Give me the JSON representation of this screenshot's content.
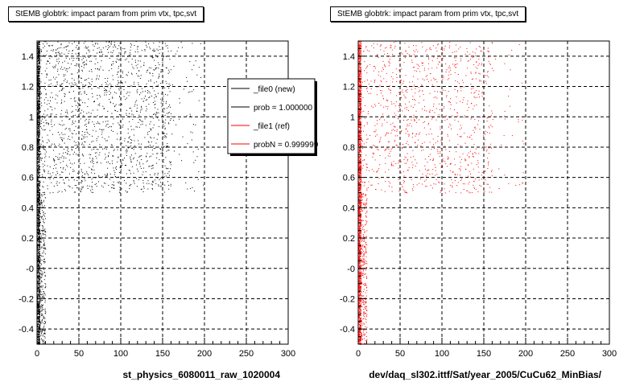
{
  "chart_data": [
    {
      "type": "scatter",
      "title": "StEMB globtrk: impact param from prim vtx, tpc,svt",
      "xlabel": "st_physics_6080011_raw_1020004",
      "ylabel": "",
      "xlim": [
        0,
        300
      ],
      "ylim": [
        -0.5,
        1.5
      ],
      "x_ticks": [
        0,
        50,
        100,
        150,
        200,
        250,
        300
      ],
      "y_ticks": [
        -0.4,
        -0.2,
        0,
        0.2,
        0.4,
        0.6,
        0.8,
        1,
        1.2,
        1.4
      ],
      "x_tick_labels": [
        "0",
        "50",
        "100",
        "150",
        "200",
        "250",
        "300"
      ],
      "y_tick_labels": [
        "-0.4",
        "-0.2",
        "-0",
        "0.2",
        "0.4",
        "0.6",
        "0.8",
        "1",
        "1.2",
        "1.4"
      ],
      "grid": true,
      "color": "#000000",
      "density_regions": [
        {
          "x": [
            0,
            3
          ],
          "y": [
            -0.5,
            1.5
          ],
          "weight": 6
        },
        {
          "x": [
            3,
            160
          ],
          "y": [
            0.5,
            1.5
          ],
          "weight": 5
        },
        {
          "x": [
            3,
            200
          ],
          "y": [
            0.5,
            1.5
          ],
          "weight": 1
        },
        {
          "x": [
            3,
            10
          ],
          "y": [
            -0.5,
            0.5
          ],
          "weight": 1
        }
      ],
      "legend": {
        "position": "top-right",
        "entries": [
          {
            "label": "_file0 (new)",
            "color": "#000000"
          },
          {
            "label": "prob = 1.000000",
            "color": "#000000"
          },
          {
            "label": "_file1 (ref)",
            "color": "#ff0000"
          },
          {
            "label": "probN = 0.999999",
            "color": "#ff0000"
          }
        ]
      }
    },
    {
      "type": "scatter",
      "title": "StEMB globtrk: impact param from prim vtx, tpc,svt",
      "xlabel": "dev/daq_sl302.ittf/Sat/year_2005/CuCu62_MinBias/",
      "ylabel": "",
      "xlim": [
        0,
        300
      ],
      "ylim": [
        -0.5,
        1.5
      ],
      "x_ticks": [
        0,
        50,
        100,
        150,
        200,
        250,
        300
      ],
      "y_ticks": [
        -0.4,
        -0.2,
        0,
        0.2,
        0.4,
        0.6,
        0.8,
        1,
        1.2,
        1.4
      ],
      "x_tick_labels": [
        "0",
        "50",
        "100",
        "150",
        "200",
        "250",
        "300"
      ],
      "y_tick_labels": [
        "-0.4",
        "-0.2",
        "-0",
        "0.2",
        "0.4",
        "0.6",
        "0.8",
        "1",
        "1.2",
        "1.4"
      ],
      "grid": true,
      "color": "#ff0000",
      "density_regions": [
        {
          "x": [
            0,
            3
          ],
          "y": [
            -0.5,
            1.5
          ],
          "weight": 6
        },
        {
          "x": [
            3,
            160
          ],
          "y": [
            0.5,
            1.5
          ],
          "weight": 3
        },
        {
          "x": [
            3,
            200
          ],
          "y": [
            0.5,
            1.5
          ],
          "weight": 1
        },
        {
          "x": [
            3,
            10
          ],
          "y": [
            -0.5,
            0.5
          ],
          "weight": 1
        }
      ]
    }
  ]
}
